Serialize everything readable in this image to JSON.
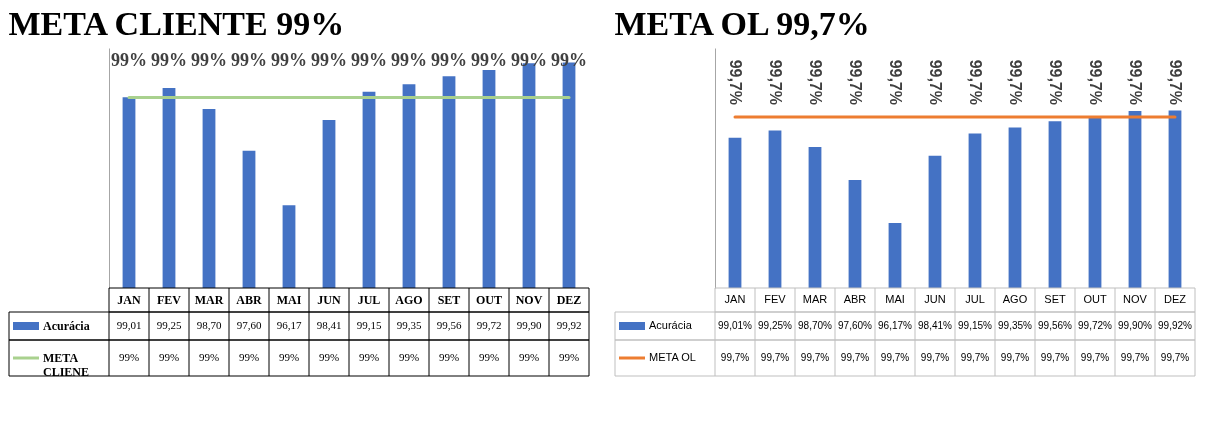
{
  "chart_data": [
    {
      "type": "bar",
      "title": "META CLIENTE 99%",
      "categories": [
        "JAN",
        "FEV",
        "MAR",
        "ABR",
        "MAI",
        "JUN",
        "JUL",
        "AGO",
        "SET",
        "OUT",
        "NOV",
        "DEZ"
      ],
      "ylim": [
        94,
        100.3
      ],
      "tick_labels": "x",
      "legend": "bottom left",
      "series": [
        {
          "name": "Acurácia",
          "color": "#4472c4",
          "values": [
            99.01,
            99.25,
            98.7,
            97.6,
            96.17,
            98.41,
            99.15,
            99.35,
            99.56,
            99.72,
            99.9,
            99.92
          ],
          "value_labels": [
            "99,01",
            "99,25",
            "98,70",
            "97,60",
            "96,17",
            "98,41",
            "99,15",
            "99,35",
            "99,56",
            "99,72",
            "99,90",
            "99,92"
          ]
        },
        {
          "name": "META CLIENE",
          "type": "line",
          "color": "#a9d18e",
          "values": [
            99,
            99,
            99,
            99,
            99,
            99,
            99,
            99,
            99,
            99,
            99,
            99
          ],
          "value_labels": [
            "99%",
            "99%",
            "99%",
            "99%",
            "99%",
            "99%",
            "99%",
            "99%",
            "99%",
            "99%",
            "99%",
            "99%"
          ]
        }
      ]
    },
    {
      "type": "bar",
      "title": "META OL 99,7%",
      "categories": [
        "JAN",
        "FEV",
        "MAR",
        "ABR",
        "MAI",
        "JUN",
        "JUL",
        "AGO",
        "SET",
        "OUT",
        "NOV",
        "DEZ"
      ],
      "ylim": [
        94,
        102
      ],
      "tick_labels": "x",
      "legend": "bottom left",
      "series": [
        {
          "name": "Acurácia",
          "color": "#4472c4",
          "values": [
            99.01,
            99.25,
            98.7,
            97.6,
            96.17,
            98.41,
            99.15,
            99.35,
            99.56,
            99.72,
            99.9,
            99.92
          ],
          "value_labels": [
            "99,01%",
            "99,25%",
            "98,70%",
            "97,60%",
            "96,17%",
            "98,41%",
            "99,15%",
            "99,35%",
            "99,56%",
            "99,72%",
            "99,90%",
            "99,92%"
          ]
        },
        {
          "name": "META OL",
          "type": "line",
          "color": "#ed7d31",
          "values": [
            99.7,
            99.7,
            99.7,
            99.7,
            99.7,
            99.7,
            99.7,
            99.7,
            99.7,
            99.7,
            99.7,
            99.7
          ],
          "value_labels": [
            "99,7%",
            "99,7%",
            "99,7%",
            "99,7%",
            "99,7%",
            "99,7%",
            "99,7%",
            "99,7%",
            "99,7%",
            "99,7%",
            "99,7%",
            "99,7%"
          ]
        }
      ]
    }
  ]
}
